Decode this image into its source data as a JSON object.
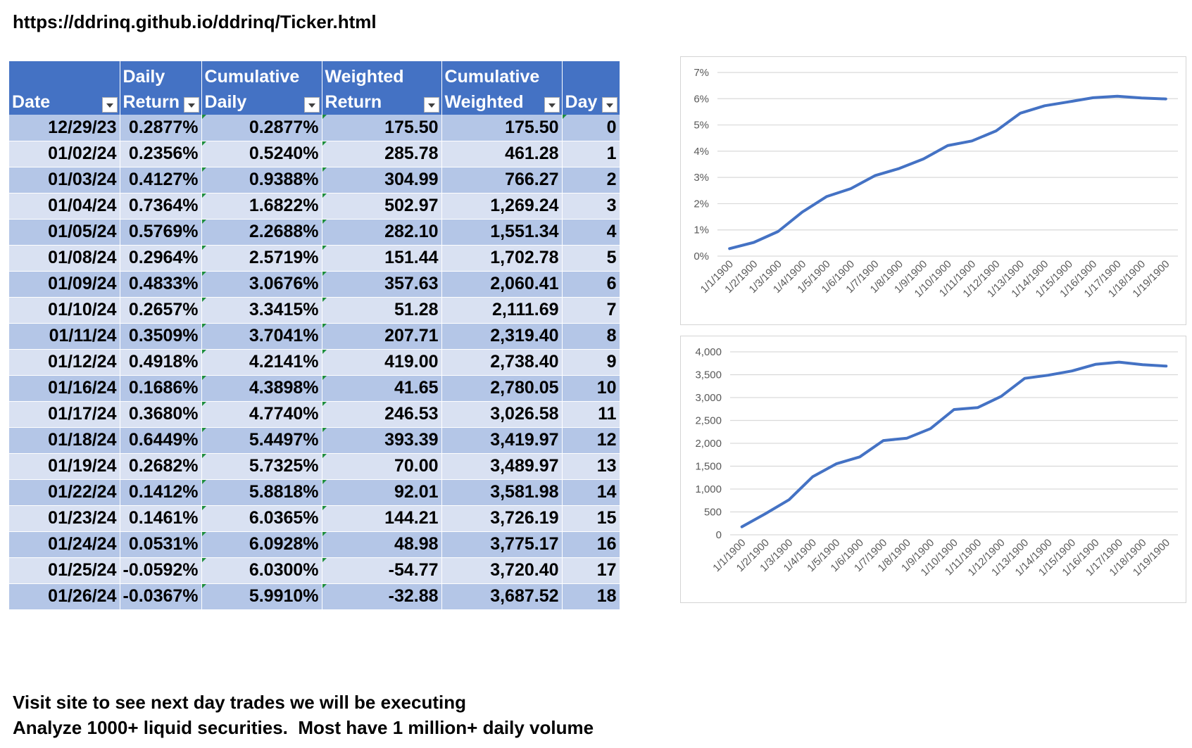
{
  "header": {
    "url": "https://ddrinq.github.io/ddrinq/Ticker.html"
  },
  "table": {
    "headers": [
      {
        "line1": "",
        "line2": "Date"
      },
      {
        "line1": "Daily",
        "line2": "Return"
      },
      {
        "line1": "Cumulative",
        "line2": "Daily"
      },
      {
        "line1": "Weighted",
        "line2": "Return"
      },
      {
        "line1": "Cumulative",
        "line2": "Weighted"
      },
      {
        "line1": "",
        "line2": "Day"
      }
    ],
    "rows": [
      [
        "12/29/23",
        "0.2877%",
        "0.2877%",
        "175.50",
        "175.50",
        "0"
      ],
      [
        "01/02/24",
        "0.2356%",
        "0.5240%",
        "285.78",
        "461.28",
        "1"
      ],
      [
        "01/03/24",
        "0.4127%",
        "0.9388%",
        "304.99",
        "766.27",
        "2"
      ],
      [
        "01/04/24",
        "0.7364%",
        "1.6822%",
        "502.97",
        "1,269.24",
        "3"
      ],
      [
        "01/05/24",
        "0.5769%",
        "2.2688%",
        "282.10",
        "1,551.34",
        "4"
      ],
      [
        "01/08/24",
        "0.2964%",
        "2.5719%",
        "151.44",
        "1,702.78",
        "5"
      ],
      [
        "01/09/24",
        "0.4833%",
        "3.0676%",
        "357.63",
        "2,060.41",
        "6"
      ],
      [
        "01/10/24",
        "0.2657%",
        "3.3415%",
        "51.28",
        "2,111.69",
        "7"
      ],
      [
        "01/11/24",
        "0.3509%",
        "3.7041%",
        "207.71",
        "2,319.40",
        "8"
      ],
      [
        "01/12/24",
        "0.4918%",
        "4.2141%",
        "419.00",
        "2,738.40",
        "9"
      ],
      [
        "01/16/24",
        "0.1686%",
        "4.3898%",
        "41.65",
        "2,780.05",
        "10"
      ],
      [
        "01/17/24",
        "0.3680%",
        "4.7740%",
        "246.53",
        "3,026.58",
        "11"
      ],
      [
        "01/18/24",
        "0.6449%",
        "5.4497%",
        "393.39",
        "3,419.97",
        "12"
      ],
      [
        "01/19/24",
        "0.2682%",
        "5.7325%",
        "70.00",
        "3,489.97",
        "13"
      ],
      [
        "01/22/24",
        "0.1412%",
        "5.8818%",
        "92.01",
        "3,581.98",
        "14"
      ],
      [
        "01/23/24",
        "0.1461%",
        "6.0365%",
        "144.21",
        "3,726.19",
        "15"
      ],
      [
        "01/24/24",
        "0.0531%",
        "6.0928%",
        "48.98",
        "3,775.17",
        "16"
      ],
      [
        "01/25/24",
        "-0.0592%",
        "6.0300%",
        "-54.77",
        "3,720.40",
        "17"
      ],
      [
        "01/26/24",
        "-0.0367%",
        "5.9910%",
        "-32.88",
        "3,687.52",
        "18"
      ]
    ]
  },
  "chart_data": [
    {
      "type": "line",
      "title": "",
      "xlabel": "",
      "ylabel": "",
      "x": [
        "1/1/1900",
        "1/2/1900",
        "1/3/1900",
        "1/4/1900",
        "1/5/1900",
        "1/6/1900",
        "1/7/1900",
        "1/8/1900",
        "1/9/1900",
        "1/10/1900",
        "1/11/1900",
        "1/12/1900",
        "1/13/1900",
        "1/14/1900",
        "1/15/1900",
        "1/16/1900",
        "1/17/1900",
        "1/18/1900",
        "1/19/1900"
      ],
      "values": [
        0.2877,
        0.524,
        0.9388,
        1.6822,
        2.2688,
        2.5719,
        3.0676,
        3.3415,
        3.7041,
        4.2141,
        4.3898,
        4.774,
        5.4497,
        5.7325,
        5.8818,
        6.0365,
        6.0928,
        6.03,
        5.991
      ],
      "ylim": [
        0,
        7
      ],
      "yticks": [
        "0%",
        "1%",
        "2%",
        "3%",
        "4%",
        "5%",
        "6%",
        "7%"
      ],
      "grid": true,
      "color": "#4472C4"
    },
    {
      "type": "line",
      "title": "",
      "xlabel": "",
      "ylabel": "",
      "x": [
        "1/1/1900",
        "1/2/1900",
        "1/3/1900",
        "1/4/1900",
        "1/5/1900",
        "1/6/1900",
        "1/7/1900",
        "1/8/1900",
        "1/9/1900",
        "1/10/1900",
        "1/11/1900",
        "1/12/1900",
        "1/13/1900",
        "1/14/1900",
        "1/15/1900",
        "1/16/1900",
        "1/17/1900",
        "1/18/1900",
        "1/19/1900"
      ],
      "values": [
        175.5,
        461.28,
        766.27,
        1269.24,
        1551.34,
        1702.78,
        2060.41,
        2111.69,
        2319.4,
        2738.4,
        2780.05,
        3026.58,
        3419.97,
        3489.97,
        3581.98,
        3726.19,
        3775.17,
        3720.4,
        3687.52
      ],
      "ylim": [
        0,
        4000
      ],
      "yticks": [
        "0",
        "500",
        "1,000",
        "1,500",
        "2,000",
        "2,500",
        "3,000",
        "3,500",
        "4,000"
      ],
      "grid": true,
      "color": "#4472C4"
    }
  ],
  "footer": {
    "line1": "Visit site to see next day trades we will be executing",
    "line2": "Analyze 1000+ liquid securities.  Most have 1 million+ daily volume"
  }
}
